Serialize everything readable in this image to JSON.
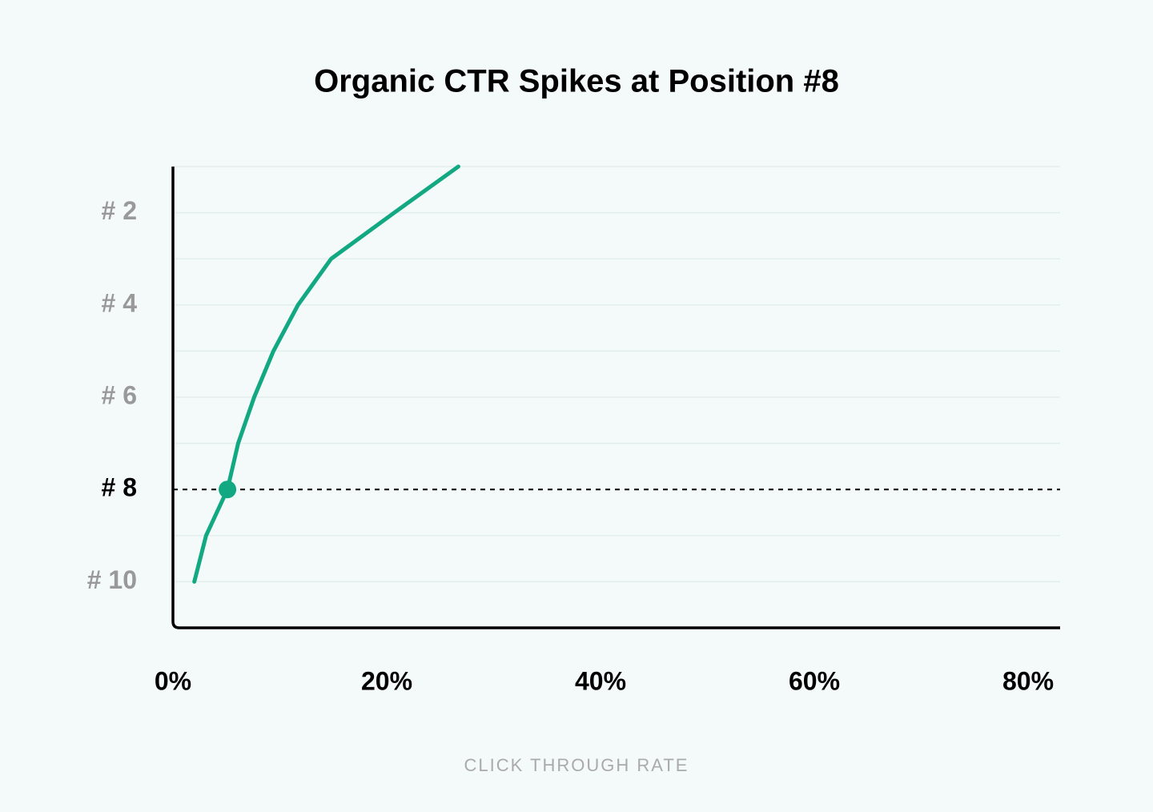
{
  "chart_data": {
    "type": "line",
    "title": "Organic CTR Spikes at Position #8",
    "x_label": "CLICK THROUGH RATE",
    "x": [
      26.7,
      20.7,
      14.8,
      11.7,
      9.4,
      7.6,
      6.1,
      5.1,
      3.1,
      2.0
    ],
    "y": [
      1,
      2,
      3,
      4,
      5,
      6,
      7,
      8,
      9,
      10
    ],
    "color": "#12a882",
    "xlim": [
      0,
      80
    ],
    "xticks": [
      {
        "value": 0,
        "label": "0%"
      },
      {
        "value": 20,
        "label": "20%"
      },
      {
        "value": 40,
        "label": "40%"
      },
      {
        "value": 60,
        "label": "60%"
      },
      {
        "value": 80,
        "label": "80%"
      }
    ],
    "ylim": [
      11,
      1
    ],
    "yticks": [
      {
        "value": 2,
        "label": "# 2"
      },
      {
        "value": 4,
        "label": "# 4"
      },
      {
        "value": 6,
        "label": "# 6"
      },
      {
        "value": 8,
        "label": "# 8"
      },
      {
        "value": 10,
        "label": "# 10"
      }
    ],
    "minor_yticks": [
      1,
      3,
      5,
      7,
      9
    ],
    "grid": true,
    "reference_line": 8
  }
}
